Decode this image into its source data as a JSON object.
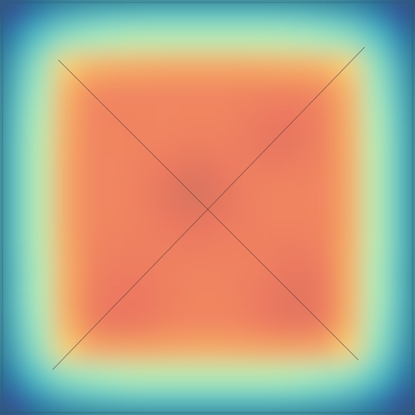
{
  "chart_data": {
    "type": "heatmap",
    "tick_labels": false,
    "color_range": [
      0,
      100
    ],
    "cells": [
      [
        5,
        15,
        22,
        25,
        27,
        28,
        28,
        28,
        28,
        28,
        28,
        27,
        25,
        22,
        15,
        5
      ],
      [
        15,
        30,
        40,
        44,
        46,
        47,
        47,
        47,
        47,
        47,
        47,
        46,
        44,
        40,
        30,
        15
      ],
      [
        22,
        40,
        60,
        66,
        68,
        69,
        70,
        70,
        70,
        70,
        69,
        68,
        66,
        60,
        40,
        22
      ],
      [
        25,
        44,
        66,
        80,
        82,
        82,
        82,
        82,
        82,
        83,
        84,
        84,
        80,
        66,
        44,
        25
      ],
      [
        27,
        46,
        68,
        82,
        84,
        83,
        82,
        83,
        83,
        86,
        90,
        90,
        84,
        68,
        46,
        27
      ],
      [
        28,
        47,
        69,
        82,
        83,
        84,
        84,
        86,
        85,
        88,
        92,
        91,
        84,
        69,
        47,
        28
      ],
      [
        28,
        47,
        70,
        82,
        82,
        85,
        90,
        93,
        90,
        86,
        88,
        86,
        83,
        70,
        47,
        28
      ],
      [
        28,
        47,
        70,
        82,
        82,
        86,
        93,
        96,
        93,
        86,
        83,
        83,
        82,
        70,
        47,
        28
      ],
      [
        28,
        47,
        70,
        82,
        83,
        85,
        90,
        92,
        90,
        86,
        84,
        84,
        83,
        70,
        47,
        28
      ],
      [
        28,
        47,
        69,
        83,
        85,
        86,
        86,
        88,
        86,
        85,
        86,
        87,
        84,
        69,
        47,
        28
      ],
      [
        27,
        46,
        68,
        84,
        88,
        88,
        85,
        84,
        84,
        85,
        88,
        91,
        88,
        68,
        46,
        27
      ],
      [
        27,
        46,
        68,
        86,
        90,
        90,
        86,
        83,
        83,
        86,
        91,
        93,
        90,
        68,
        46,
        27
      ],
      [
        25,
        44,
        66,
        85,
        91,
        89,
        84,
        82,
        82,
        84,
        90,
        92,
        88,
        66,
        44,
        25
      ],
      [
        22,
        40,
        60,
        70,
        72,
        72,
        71,
        70,
        70,
        71,
        72,
        72,
        70,
        60,
        40,
        22
      ],
      [
        15,
        30,
        40,
        44,
        46,
        47,
        47,
        47,
        47,
        47,
        47,
        46,
        44,
        40,
        30,
        15
      ],
      [
        5,
        15,
        22,
        25,
        27,
        28,
        28,
        28,
        28,
        28,
        28,
        27,
        25,
        22,
        15,
        5
      ]
    ]
  }
}
